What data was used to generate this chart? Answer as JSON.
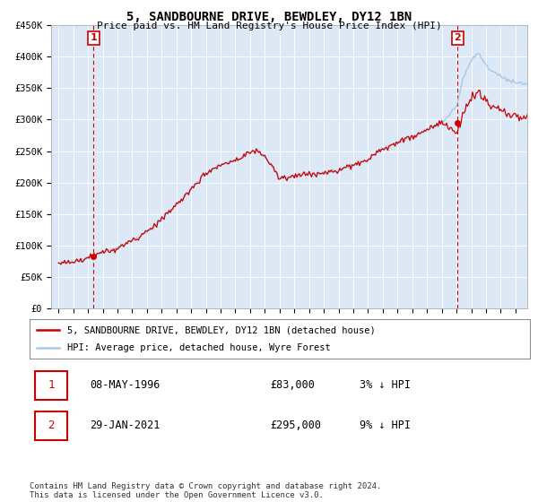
{
  "title": "5, SANDBOURNE DRIVE, BEWDLEY, DY12 1BN",
  "subtitle": "Price paid vs. HM Land Registry's House Price Index (HPI)",
  "ylim": [
    0,
    450000
  ],
  "yticks": [
    0,
    50000,
    100000,
    150000,
    200000,
    250000,
    300000,
    350000,
    400000,
    450000
  ],
  "ytick_labels": [
    "£0",
    "£50K",
    "£100K",
    "£150K",
    "£200K",
    "£250K",
    "£300K",
    "£350K",
    "£400K",
    "£450K"
  ],
  "hpi_color": "#a8c8e8",
  "price_color": "#cc0000",
  "background_color": "#ffffff",
  "plot_bg_color": "#dce8f5",
  "grid_color": "#ffffff",
  "sale1_x": 1996.37,
  "sale1_y": 83000,
  "sale2_x": 2021.08,
  "sale2_y": 295000,
  "legend_label_price": "5, SANDBOURNE DRIVE, BEWDLEY, DY12 1BN (detached house)",
  "legend_label_hpi": "HPI: Average price, detached house, Wyre Forest",
  "footer": "Contains HM Land Registry data © Crown copyright and database right 2024.\nThis data is licensed under the Open Government Licence v3.0.",
  "xtick_years": [
    1994,
    1995,
    1996,
    1997,
    1998,
    1999,
    2000,
    2001,
    2002,
    2003,
    2004,
    2005,
    2006,
    2007,
    2008,
    2009,
    2010,
    2011,
    2012,
    2013,
    2014,
    2015,
    2016,
    2017,
    2018,
    2019,
    2020,
    2021,
    2022,
    2023,
    2024,
    2025
  ],
  "xlim_left": 1993.5,
  "xlim_right": 2025.8
}
